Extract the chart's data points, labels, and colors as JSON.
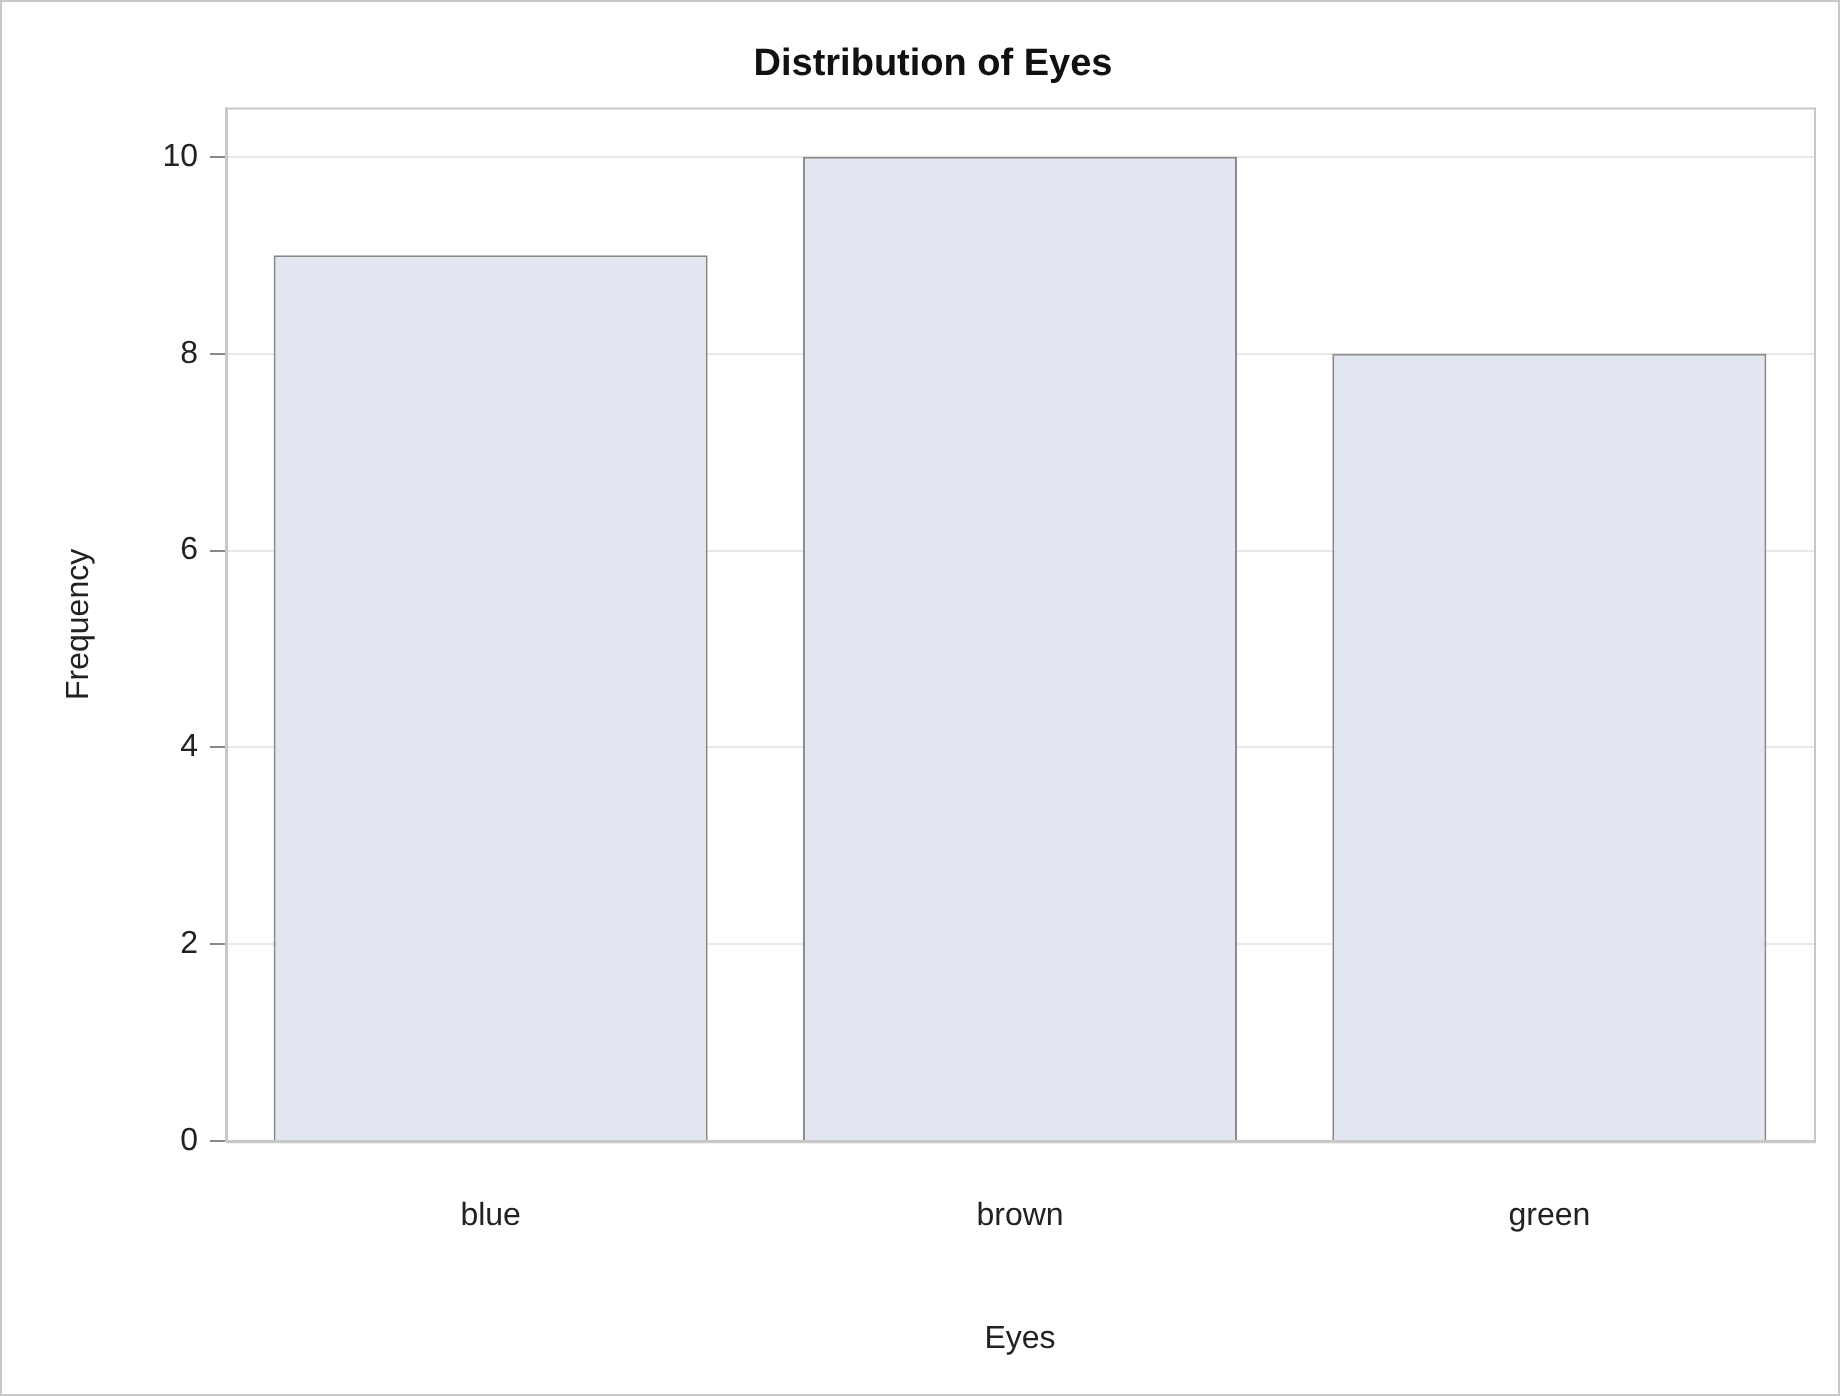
{
  "chart_data": {
    "type": "bar",
    "title": "Distribution of Eyes",
    "xlabel": "Eyes",
    "ylabel": "Frequency",
    "categories": [
      "blue",
      "brown",
      "green"
    ],
    "values": [
      9,
      10,
      8
    ],
    "color": "#e1e6f0",
    "ylim": [
      0,
      10.5
    ],
    "yticks": [
      0,
      2,
      4,
      6,
      8,
      10
    ],
    "grid": "y",
    "legend": false
  }
}
